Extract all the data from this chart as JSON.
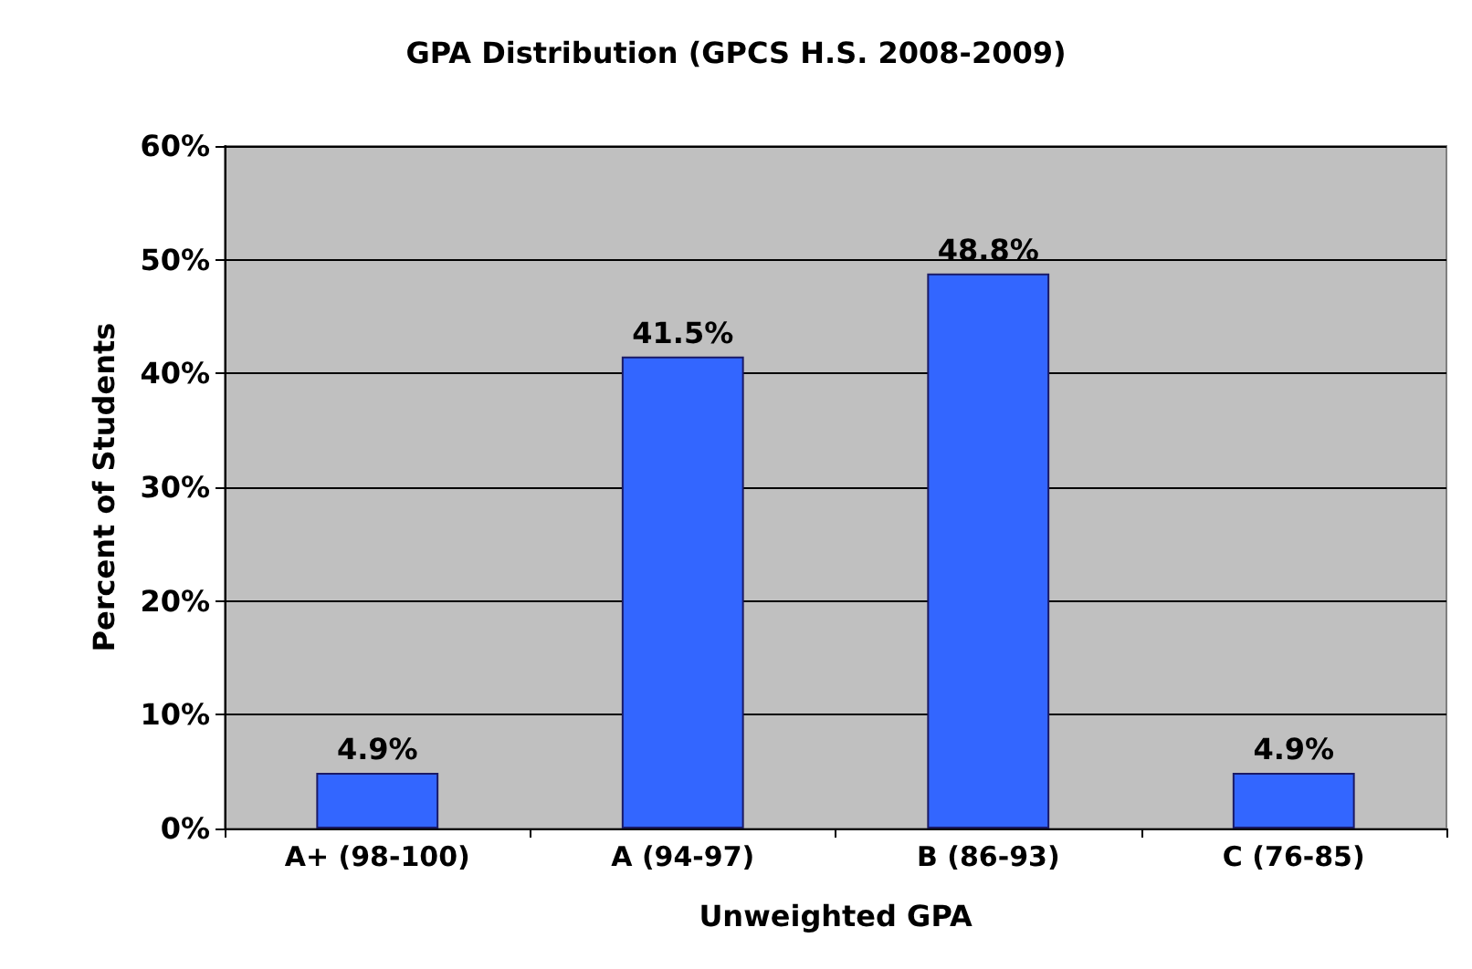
{
  "chart_data": {
    "type": "bar",
    "title": "GPA Distribution (GPCS H.S. 2008-2009)",
    "xlabel": "Unweighted GPA",
    "ylabel": "Percent of Students",
    "categories": [
      "A+ (98-100)",
      "A (94-97)",
      "B (86-93)",
      "C (76-85)"
    ],
    "values": [
      4.9,
      41.5,
      48.8,
      4.9
    ],
    "color": "#3366ff",
    "value_labels": [
      "4.9%",
      "41.5%",
      "48.8%",
      "4.9%"
    ],
    "ylim": [
      0,
      60
    ],
    "yticks": [
      {
        "value": 0,
        "label": "0%"
      },
      {
        "value": 10,
        "label": "10%"
      },
      {
        "value": 20,
        "label": "20%"
      },
      {
        "value": 30,
        "label": "30%"
      },
      {
        "value": 40,
        "label": "40%"
      },
      {
        "value": 50,
        "label": "50%"
      },
      {
        "value": 60,
        "label": "60%"
      }
    ],
    "grid": "y"
  }
}
